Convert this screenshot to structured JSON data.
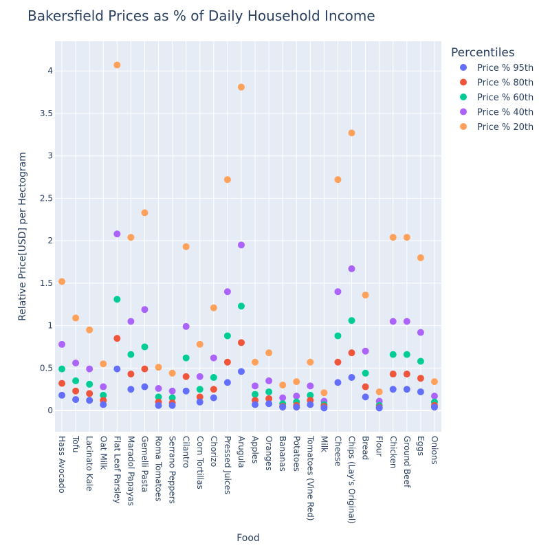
{
  "chart_data": {
    "type": "scatter",
    "title": "Bakersfield Prices as % of Daily Household Income",
    "xlabel": "Food",
    "ylabel": "Relative Price[USD] per Hectogram",
    "ylim": [
      -0.25,
      4.35
    ],
    "yticks": [
      0,
      0.5,
      1,
      1.5,
      2,
      2.5,
      3,
      3.5,
      4
    ],
    "ytick_labels": [
      "0",
      "0.5",
      "1",
      "1.5",
      "2",
      "2.5",
      "3",
      "3.5",
      "4"
    ],
    "grid": true,
    "legend_title": "Percentiles",
    "legend_position": "right",
    "categories": [
      "Hass Avocado",
      "Tofu",
      "Lacinato Kale",
      "Oat Milk",
      "Flat Leaf Parsley",
      "Maradol Papayas",
      "Gemelli Pasta",
      "Roma Tomatoes",
      "Serrano Peppers",
      "Cilantro",
      "Corn Tortillas",
      "Chorizo",
      "Pressed Juices",
      "Arugula",
      "Apples",
      "Oranges",
      "Bananas",
      "Potatoes",
      "Tomatoes (Vine Red)",
      "Milk",
      "Cheese",
      "Chips (Lay's Original)",
      "Bread",
      "Flour",
      "Chicken",
      "Ground Beef",
      "Eggs",
      "Onions"
    ],
    "series": [
      {
        "name": "Price % 95th",
        "color": "#636efa",
        "values": [
          0.18,
          0.13,
          0.12,
          0.07,
          0.49,
          0.25,
          0.28,
          0.06,
          0.06,
          0.23,
          0.1,
          0.15,
          0.33,
          0.46,
          0.07,
          0.08,
          0.04,
          0.04,
          0.07,
          0.03,
          0.33,
          0.39,
          0.16,
          0.03,
          0.25,
          0.25,
          0.22,
          0.04
        ]
      },
      {
        "name": "Price % 80th",
        "color": "#ef553b",
        "values": [
          0.32,
          0.23,
          0.2,
          0.12,
          0.85,
          0.43,
          0.49,
          0.1,
          0.09,
          0.4,
          0.16,
          0.25,
          0.57,
          0.8,
          0.12,
          0.14,
          0.05,
          0.06,
          0.12,
          0.05,
          0.57,
          0.68,
          0.28,
          0.04,
          0.43,
          0.43,
          0.38,
          0.06
        ]
      },
      {
        "name": "Price % 60th",
        "color": "#00cc96",
        "values": [
          0.49,
          0.35,
          0.31,
          0.18,
          1.31,
          0.66,
          0.75,
          0.16,
          0.15,
          0.62,
          0.25,
          0.39,
          0.88,
          1.23,
          0.19,
          0.22,
          0.08,
          0.1,
          0.18,
          0.07,
          0.88,
          1.06,
          0.44,
          0.06,
          0.66,
          0.66,
          0.58,
          0.1
        ]
      },
      {
        "name": "Price % 40th",
        "color": "#ab63fa",
        "values": [
          0.78,
          0.56,
          0.49,
          0.28,
          2.08,
          1.05,
          1.19,
          0.26,
          0.23,
          0.99,
          0.4,
          0.62,
          1.4,
          1.95,
          0.29,
          0.35,
          0.15,
          0.17,
          0.29,
          0.11,
          1.4,
          1.67,
          0.7,
          0.11,
          1.05,
          1.05,
          0.92,
          0.17
        ]
      },
      {
        "name": "Price % 20th",
        "color": "#ffa15a",
        "values": [
          1.52,
          1.09,
          0.95,
          0.55,
          4.07,
          2.04,
          2.33,
          0.51,
          0.44,
          1.93,
          0.78,
          1.21,
          2.72,
          3.81,
          0.57,
          0.68,
          0.3,
          0.34,
          0.57,
          0.21,
          2.72,
          3.27,
          1.36,
          0.22,
          2.04,
          2.04,
          1.8,
          0.34
        ]
      }
    ]
  }
}
